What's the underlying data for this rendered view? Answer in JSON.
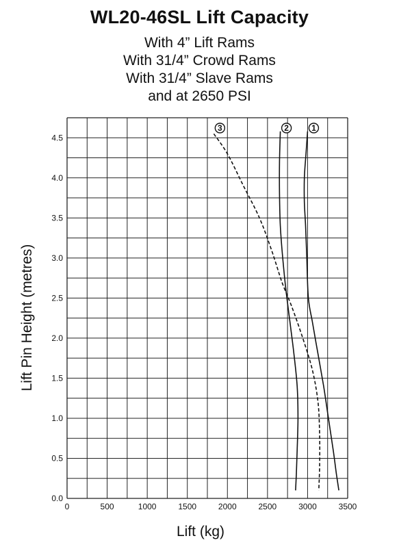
{
  "chart_data": {
    "type": "line",
    "title": "WL20-46SL Lift Capacity",
    "subtitle_lines": [
      "With 4” Lift Rams",
      "With 31/4” Crowd Rams",
      "With 31/4” Slave Rams",
      "and at 2650 PSI"
    ],
    "xlabel": "Lift (kg)",
    "ylabel": "Lift Pin Height (metres)",
    "xlim": [
      0,
      3500
    ],
    "ylim": [
      0,
      4.75
    ],
    "xticks": [
      "0",
      "500",
      "1000",
      "1500",
      "2000",
      "2500",
      "3000",
      "3500"
    ],
    "yticks": [
      "0.0",
      "0.5",
      "1.0",
      "1.5",
      "2.0",
      "2.5",
      "3.0",
      "3.5",
      "4.0",
      "4.5"
    ],
    "grid": true,
    "series": [
      {
        "name": "1",
        "style": "solid",
        "points": [
          [
            3000,
            4.58
          ],
          [
            2980,
            4.3
          ],
          [
            2960,
            4.0
          ],
          [
            2960,
            3.7
          ],
          [
            2975,
            3.4
          ],
          [
            2990,
            3.0
          ],
          [
            3010,
            2.5
          ],
          [
            3060,
            2.2
          ],
          [
            3130,
            1.8
          ],
          [
            3200,
            1.4
          ],
          [
            3260,
            1.0
          ],
          [
            3320,
            0.6
          ],
          [
            3360,
            0.3
          ],
          [
            3390,
            0.1
          ]
        ]
      },
      {
        "name": "2",
        "style": "solid",
        "points": [
          [
            2660,
            4.58
          ],
          [
            2650,
            4.2
          ],
          [
            2650,
            3.8
          ],
          [
            2660,
            3.4
          ],
          [
            2690,
            3.0
          ],
          [
            2730,
            2.6
          ],
          [
            2780,
            2.2
          ],
          [
            2830,
            1.8
          ],
          [
            2870,
            1.4
          ],
          [
            2880,
            1.0
          ],
          [
            2870,
            0.6
          ],
          [
            2860,
            0.3
          ],
          [
            2850,
            0.1
          ]
        ]
      },
      {
        "name": "3",
        "style": "dashed",
        "points": [
          [
            1830,
            4.55
          ],
          [
            2000,
            4.3
          ],
          [
            2200,
            3.9
          ],
          [
            2400,
            3.5
          ],
          [
            2550,
            3.1
          ],
          [
            2680,
            2.7
          ],
          [
            2800,
            2.4
          ],
          [
            2940,
            2.0
          ],
          [
            3060,
            1.6
          ],
          [
            3130,
            1.2
          ],
          [
            3150,
            0.8
          ],
          [
            3150,
            0.4
          ],
          [
            3140,
            0.1
          ]
        ]
      }
    ]
  }
}
